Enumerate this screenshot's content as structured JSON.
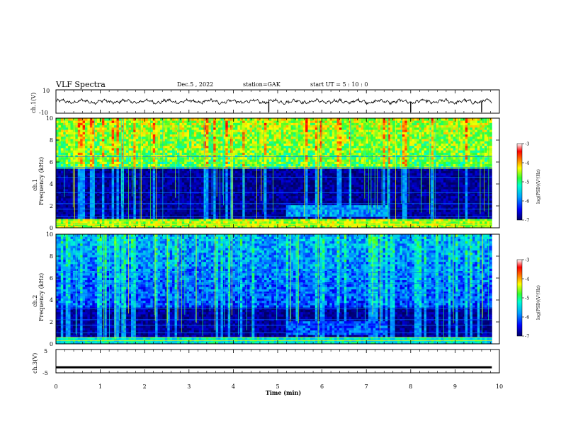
{
  "header": {
    "title": "VLF Spectra",
    "date": "Dec.5 , 2022",
    "station": "station=GAK",
    "start": "start  UT =  5 : 10 : 0"
  },
  "chart_data": [
    {
      "panel": "ch1-waveform",
      "type": "line",
      "ylabel": "ch.1(V)",
      "ylim": [
        -10,
        10
      ],
      "yticks": [
        "10",
        "-10"
      ],
      "xlim": [
        0,
        10
      ],
      "trace_mean": 0,
      "trace_amplitude": 2.5,
      "spikes": [
        4.8,
        8.0,
        9.6
      ]
    },
    {
      "panel": "ch1-spectrogram",
      "type": "heatmap",
      "ylabel_line1": "ch.1",
      "ylabel_line2": "Frequency  (kHz)",
      "ylim": [
        0,
        10
      ],
      "yticks": [
        "0",
        "2",
        "4",
        "6",
        "8",
        "10"
      ],
      "xlim": [
        0,
        10
      ],
      "regions": [
        {
          "kind": "high-band",
          "f_from": 5.5,
          "f_to": 10,
          "level": -4.8
        },
        {
          "kind": "low-band",
          "f_from": 0.9,
          "f_to": 5.5,
          "level": -6.9
        },
        {
          "kind": "strong-low",
          "f_from": 0,
          "f_to": 0.9,
          "level": -4.5
        },
        {
          "kind": "event",
          "t_from": 5.2,
          "t_to": 7.5,
          "f_from": 1.0,
          "f_to": 2.0,
          "level": -5.8
        }
      ],
      "colorbar": {
        "label": "log(PSD)(V²/Hz)",
        "ticks": [
          "-3",
          "-4",
          "-5",
          "-6",
          "-7"
        ],
        "range": [
          -7,
          -3
        ]
      }
    },
    {
      "panel": "ch2-spectrogram",
      "type": "heatmap",
      "ylabel_line1": "ch.2",
      "ylabel_line2": "Frequency  (kHz)",
      "ylim": [
        0,
        10
      ],
      "yticks": [
        "0",
        "2",
        "4",
        "6",
        "8",
        "10"
      ],
      "xlim": [
        0,
        10
      ],
      "regions": [
        {
          "kind": "high-band",
          "f_from": 3.3,
          "f_to": 10,
          "level": -6.2
        },
        {
          "kind": "low-band",
          "f_from": 0.6,
          "f_to": 3.3,
          "level": -6.9
        },
        {
          "kind": "strong-low",
          "f_from": 0,
          "f_to": 0.6,
          "level": -5.3
        },
        {
          "kind": "event",
          "t_from": 5.2,
          "t_to": 7.5,
          "f_from": 0.8,
          "f_to": 2.0,
          "level": -6.1
        }
      ],
      "colorbar": {
        "label": "log(PSD)(V²/Hz)",
        "ticks": [
          "-3",
          "-4",
          "-5",
          "-6",
          "-7"
        ],
        "range": [
          -7,
          -3
        ]
      }
    },
    {
      "panel": "ch3-waveform",
      "type": "line",
      "ylabel": "ch.3(V)",
      "ylim": [
        -5,
        5
      ],
      "yticks": [
        "5",
        "-5"
      ],
      "xlim": [
        0,
        10
      ],
      "trace_mean": -2.6,
      "trace_amplitude": 0.2
    }
  ],
  "xaxis": {
    "label": "Time  (min)",
    "ticks": [
      "0",
      "1",
      "2",
      "3",
      "4",
      "5",
      "6",
      "7",
      "8",
      "9",
      "10"
    ],
    "range": [
      0,
      10
    ]
  },
  "data_end_min": 9.83
}
